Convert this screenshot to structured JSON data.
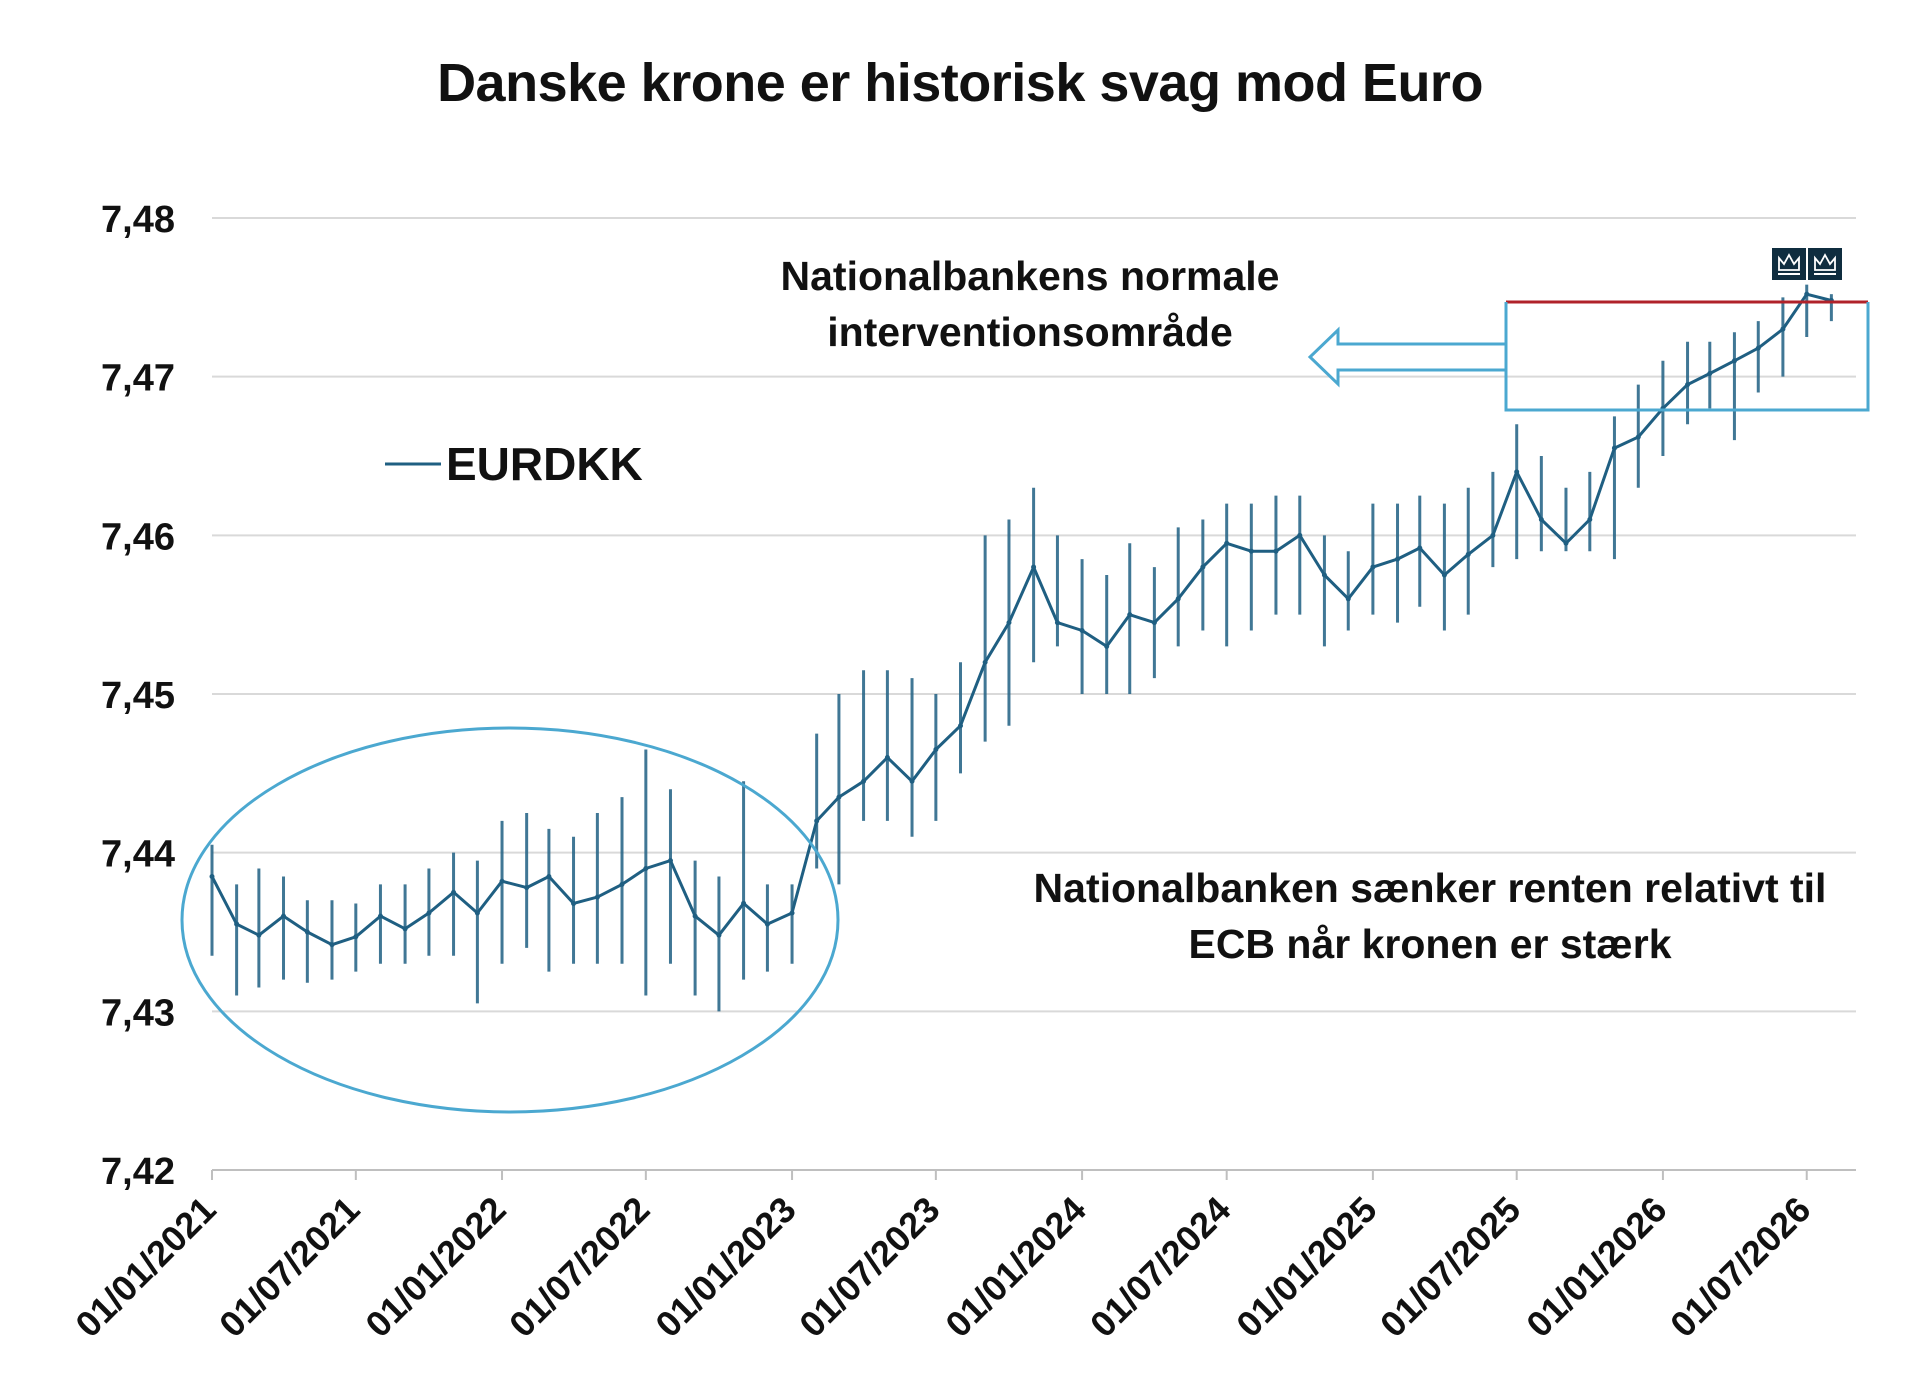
{
  "chart_data": {
    "type": "line",
    "title": "Danske krone er historisk svag mod Euro",
    "xlabel": "",
    "ylabel": "",
    "ylim": [
      7.42,
      7.48
    ],
    "y_ticks": [
      "7,42",
      "7,43",
      "7,44",
      "7,45",
      "7,46",
      "7,47",
      "7,48"
    ],
    "x_range": [
      "2021-01-01",
      "2026-09-01"
    ],
    "x_ticks": [
      "01/01/2021",
      "01/07/2021",
      "01/01/2022",
      "01/07/2022",
      "01/01/2023",
      "01/07/2023",
      "01/01/2024",
      "01/07/2024",
      "01/01/2025",
      "01/07/2025",
      "01/01/2026",
      "01/07/2026"
    ],
    "x_tick_dates": [
      "2021-01-01",
      "2021-07-01",
      "2022-01-01",
      "2022-07-01",
      "2023-01-01",
      "2023-07-01",
      "2024-01-01",
      "2024-07-01",
      "2025-01-01",
      "2025-07-01",
      "2026-01-01",
      "2026-07-01"
    ],
    "grid": true,
    "legend": "left",
    "series": [
      {
        "name": "EURDKK",
        "color": "#1f5f82",
        "x": [
          "2021-01-01",
          "2021-02-01",
          "2021-03-01",
          "2021-04-01",
          "2021-05-01",
          "2021-06-01",
          "2021-07-01",
          "2021-08-01",
          "2021-09-01",
          "2021-10-01",
          "2021-11-01",
          "2021-12-01",
          "2022-01-01",
          "2022-02-01",
          "2022-03-01",
          "2022-04-01",
          "2022-05-01",
          "2022-06-01",
          "2022-07-01",
          "2022-08-01",
          "2022-09-01",
          "2022-10-01",
          "2022-11-01",
          "2022-12-01",
          "2023-01-01",
          "2023-02-01",
          "2023-03-01",
          "2023-04-01",
          "2023-05-01",
          "2023-06-01",
          "2023-07-01",
          "2023-08-01",
          "2023-09-01",
          "2023-10-01",
          "2023-11-01",
          "2023-12-01",
          "2024-01-01",
          "2024-02-01",
          "2024-03-01",
          "2024-04-01",
          "2024-05-01",
          "2024-06-01",
          "2024-07-01",
          "2024-08-01",
          "2024-09-01",
          "2024-10-01",
          "2024-11-01",
          "2024-12-01",
          "2025-01-01",
          "2025-02-01",
          "2025-03-01",
          "2025-04-01",
          "2025-05-01",
          "2025-06-01",
          "2025-07-01",
          "2025-08-01",
          "2025-09-01",
          "2025-10-01",
          "2025-11-01",
          "2025-12-01",
          "2026-01-01",
          "2026-02-01",
          "2026-03-01",
          "2026-04-01",
          "2026-05-01",
          "2026-06-01",
          "2026-07-01",
          "2026-08-01"
        ],
        "values": [
          7.4385,
          7.4355,
          7.4348,
          7.436,
          7.435,
          7.4342,
          7.4347,
          7.436,
          7.4352,
          7.4362,
          7.4375,
          7.4362,
          7.4382,
          7.4378,
          7.4385,
          7.4368,
          7.4372,
          7.438,
          7.439,
          7.4395,
          7.436,
          7.4348,
          7.4368,
          7.4355,
          7.4362,
          7.442,
          7.4435,
          7.4445,
          7.446,
          7.4445,
          7.4465,
          7.448,
          7.452,
          7.4545,
          7.458,
          7.4545,
          7.454,
          7.453,
          7.455,
          7.4545,
          7.456,
          7.458,
          7.4595,
          7.459,
          7.459,
          7.46,
          7.4575,
          7.456,
          7.458,
          7.4585,
          7.4592,
          7.4575,
          7.4588,
          7.46,
          7.464,
          7.461,
          7.4595,
          7.461,
          7.4655,
          7.4662,
          7.468,
          7.4695,
          7.4702,
          7.471,
          7.4718,
          7.473,
          7.4752,
          7.4748
        ],
        "range_min": [
          7.4335,
          7.431,
          7.4315,
          7.432,
          7.4318,
          7.432,
          7.4325,
          7.433,
          7.433,
          7.4335,
          7.4335,
          7.4305,
          7.433,
          7.434,
          7.4325,
          7.433,
          7.433,
          7.433,
          7.431,
          7.433,
          7.431,
          7.43,
          7.432,
          7.4325,
          7.433,
          7.439,
          7.438,
          7.442,
          7.442,
          7.441,
          7.442,
          7.445,
          7.447,
          7.448,
          7.452,
          7.453,
          7.45,
          7.45,
          7.45,
          7.451,
          7.453,
          7.454,
          7.453,
          7.454,
          7.455,
          7.455,
          7.453,
          7.454,
          7.455,
          7.4545,
          7.4555,
          7.454,
          7.455,
          7.458,
          7.4585,
          7.459,
          7.459,
          7.459,
          7.4585,
          7.463,
          7.465,
          7.467,
          7.468,
          7.466,
          7.469,
          7.47,
          7.4725,
          7.4735
        ],
        "range_max": [
          7.4405,
          7.438,
          7.439,
          7.4385,
          7.437,
          7.437,
          7.4368,
          7.438,
          7.438,
          7.439,
          7.44,
          7.4395,
          7.442,
          7.4425,
          7.4415,
          7.441,
          7.4425,
          7.4435,
          7.4465,
          7.444,
          7.4395,
          7.4385,
          7.4445,
          7.438,
          7.438,
          7.4475,
          7.45,
          7.4515,
          7.4515,
          7.451,
          7.45,
          7.452,
          7.46,
          7.461,
          7.463,
          7.46,
          7.4585,
          7.4575,
          7.4595,
          7.458,
          7.4605,
          7.461,
          7.462,
          7.462,
          7.4625,
          7.4625,
          7.46,
          7.459,
          7.462,
          7.462,
          7.4625,
          7.462,
          7.463,
          7.464,
          7.467,
          7.465,
          7.463,
          7.464,
          7.4675,
          7.4695,
          7.471,
          7.4722,
          7.4722,
          7.4728,
          7.4735,
          7.475,
          7.4758,
          7.4752
        ]
      }
    ],
    "annotations": [
      {
        "text_line1": "Nationalbankens normale",
        "text_line2": "interventionsområde"
      },
      {
        "text_line1": "Nationalbanken sænker renten relativt til",
        "text_line2": "ECB når kronen er stærk"
      }
    ]
  },
  "colors": {
    "line": "#1f5f82",
    "ellipse": "#4ba8d0",
    "box_top": "#b0222a",
    "box_sides": "#4ba8d0",
    "arrow": "#4ba8d0",
    "grid": "#d9d9d9",
    "logo_bg": "#0f2d3f"
  },
  "logos": [
    "crown-logo",
    "crown-logo"
  ]
}
